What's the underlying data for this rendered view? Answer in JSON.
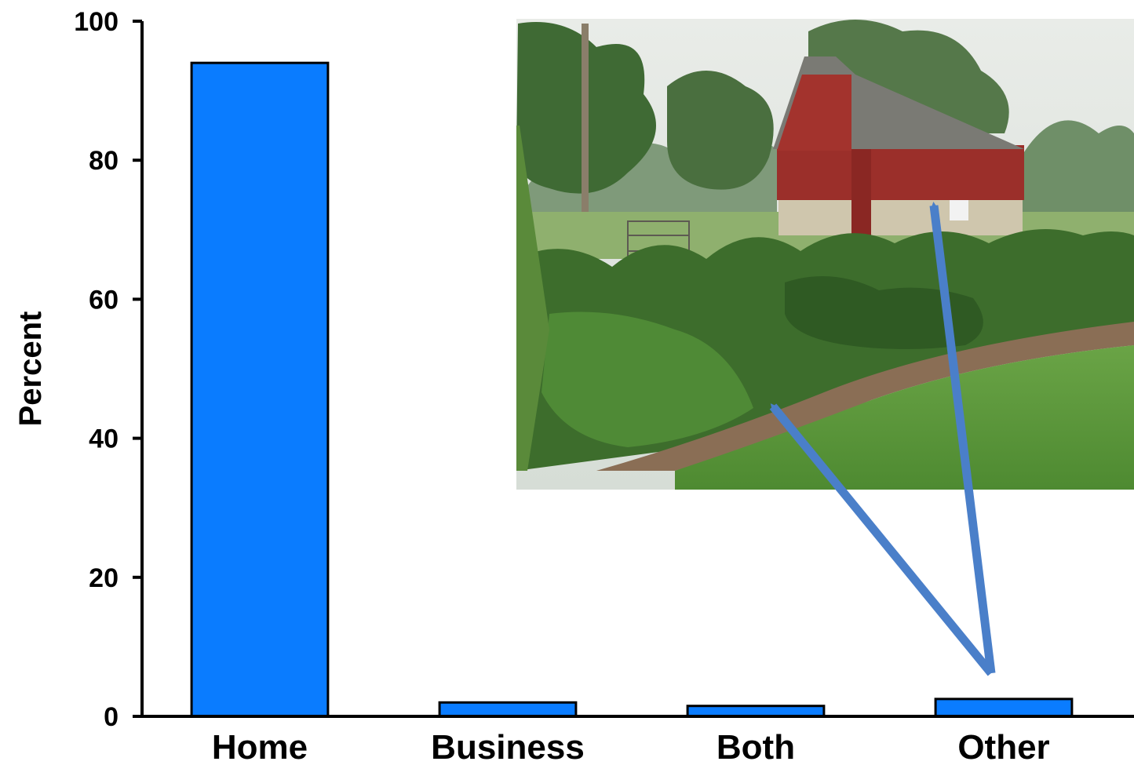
{
  "chart_data": {
    "type": "bar",
    "categories": [
      "Home",
      "Business",
      "Both",
      "Other"
    ],
    "values": [
      94,
      2,
      1.5,
      2.5
    ],
    "ylabel": "Percent",
    "ylim": [
      0,
      100
    ],
    "yticks": [
      0,
      20,
      40,
      60,
      80,
      100
    ],
    "grid": false,
    "bar_color": "#0a7cff",
    "bar_edge_color": "#000000",
    "annotation_arrow_color": "#4a7fc9"
  },
  "inset_photo": {
    "subject": "red-barn-vegetable-garden-photo"
  }
}
